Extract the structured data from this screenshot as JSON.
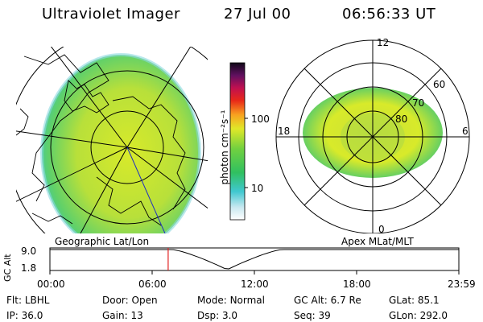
{
  "header": {
    "instrument": "Ultraviolet Imager",
    "date": "27 Jul 00",
    "time": "06:56:33 UT"
  },
  "panels": {
    "left_label": "Geographic Lat/Lon",
    "right_label": "Apex MLat/MLT"
  },
  "colorbar": {
    "unit_label": "photon cm⁻²s⁻¹",
    "ticks": [
      "100",
      "10"
    ]
  },
  "polar": {
    "mlt_labels": [
      "12",
      "18",
      "6",
      "0"
    ],
    "mlat_labels": [
      "60",
      "70",
      "80"
    ]
  },
  "altitude_plot": {
    "ylabel": "GC Alt",
    "yticks": [
      "9.0",
      "1.8"
    ],
    "xticks": [
      "00:00",
      "06:00",
      "12:00",
      "18:00",
      "23:59"
    ],
    "marker_hour": 6.94,
    "marker_color": "#e02020"
  },
  "status": [
    {
      "key": "Flt:",
      "value": "LBHL"
    },
    {
      "key": "Door:",
      "value": "Open"
    },
    {
      "key": "Mode:",
      "value": "Normal"
    },
    {
      "key": "GC Alt:",
      "value": "6.7 Re"
    },
    {
      "key": "GLat:",
      "value": "85.1"
    },
    {
      "key": "IP:",
      "value": "36.0"
    },
    {
      "key": "Gain:",
      "value": "13"
    },
    {
      "key": "Dsp:",
      "value": "3.0"
    },
    {
      "key": "Seq:",
      "value": "39"
    },
    {
      "key": "GLon:",
      "value": "292.0"
    }
  ]
}
